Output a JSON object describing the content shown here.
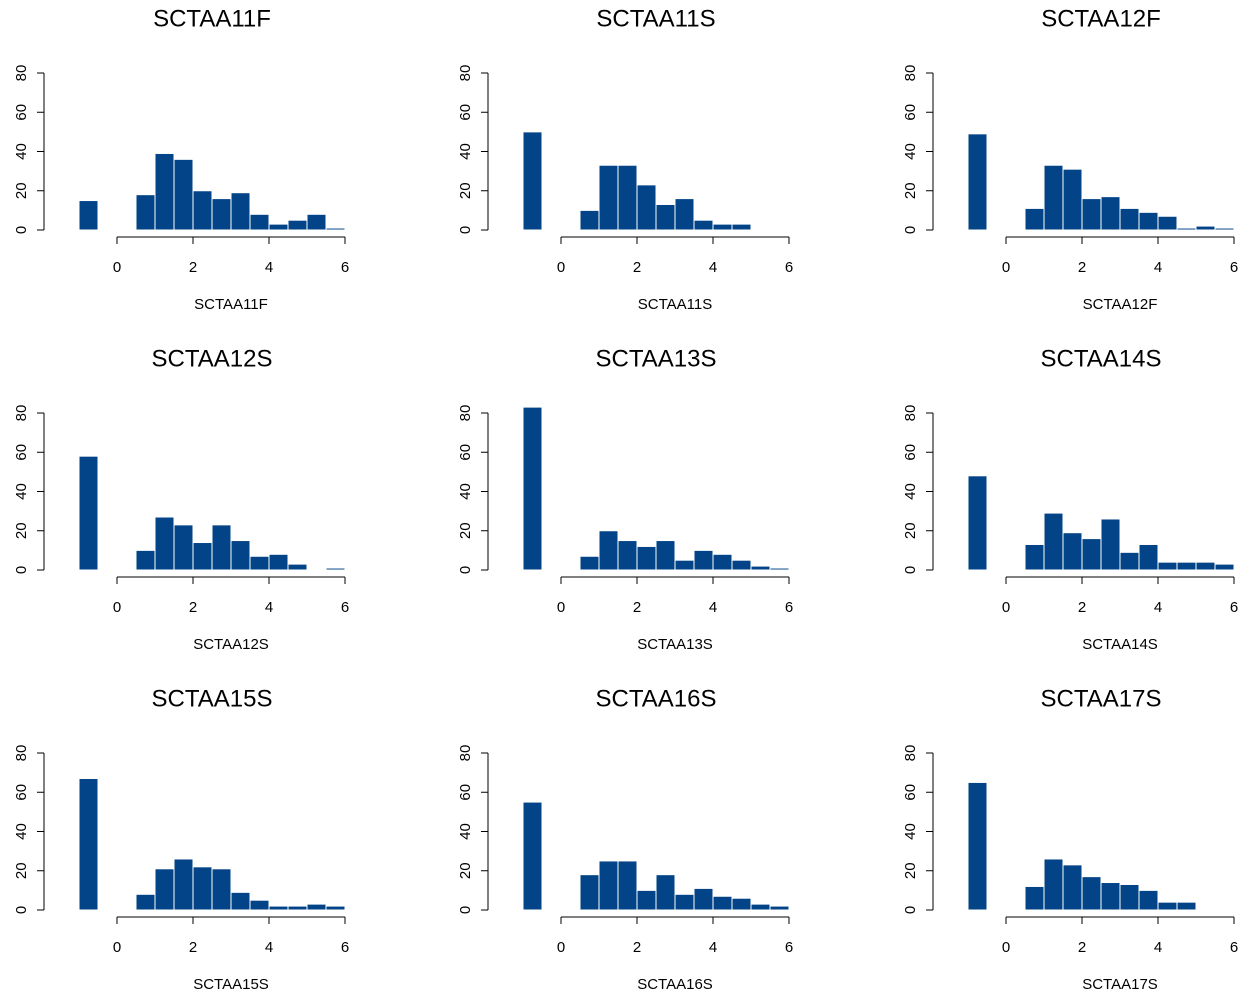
{
  "chart_data": [
    {
      "type": "histogram",
      "title": "SCTAA11F",
      "xlabel": "SCTAA11F",
      "color": "#034387",
      "bins": [
        -1,
        -0.5,
        0,
        0.5,
        1,
        1.5,
        2,
        2.5,
        3,
        3.5,
        4,
        4.5,
        5,
        5.5,
        6
      ],
      "values": [
        15,
        0,
        0,
        18,
        39,
        36,
        20,
        16,
        19,
        8,
        3,
        5,
        8,
        1
      ],
      "xlim": [
        -1.1,
        6.1
      ],
      "ylim": [
        0,
        85
      ],
      "xticks": [
        0,
        2,
        4,
        6
      ],
      "yticks": [
        0,
        20,
        40,
        60,
        80
      ]
    },
    {
      "type": "histogram",
      "title": "SCTAA11S",
      "xlabel": "SCTAA11S",
      "color": "#034387",
      "bins": [
        -1,
        -0.5,
        0,
        0.5,
        1,
        1.5,
        2,
        2.5,
        3,
        3.5,
        4,
        4.5,
        5,
        5.5,
        6
      ],
      "values": [
        50,
        0,
        0,
        10,
        33,
        33,
        23,
        13,
        16,
        5,
        3,
        3,
        0,
        0
      ],
      "xlim": [
        -1.1,
        6.1
      ],
      "ylim": [
        0,
        85
      ],
      "xticks": [
        0,
        2,
        4,
        6
      ],
      "yticks": [
        0,
        20,
        40,
        60,
        80
      ]
    },
    {
      "type": "histogram",
      "title": "SCTAA12F",
      "xlabel": "SCTAA12F",
      "color": "#034387",
      "bins": [
        -1,
        -0.5,
        0,
        0.5,
        1,
        1.5,
        2,
        2.5,
        3,
        3.5,
        4,
        4.5,
        5,
        5.5,
        6
      ],
      "values": [
        49,
        0,
        0,
        11,
        33,
        31,
        16,
        17,
        11,
        9,
        7,
        1,
        2,
        1
      ],
      "xlim": [
        -1.1,
        6.1
      ],
      "ylim": [
        0,
        85
      ],
      "xticks": [
        0,
        2,
        4,
        6
      ],
      "yticks": [
        0,
        20,
        40,
        60,
        80
      ]
    },
    {
      "type": "histogram",
      "title": "SCTAA12S",
      "xlabel": "SCTAA12S",
      "color": "#034387",
      "bins": [
        -1,
        -0.5,
        0,
        0.5,
        1,
        1.5,
        2,
        2.5,
        3,
        3.5,
        4,
        4.5,
        5,
        5.5,
        6
      ],
      "values": [
        58,
        0,
        0,
        10,
        27,
        23,
        14,
        23,
        15,
        7,
        8,
        3,
        0,
        1
      ],
      "xlim": [
        -1.1,
        6.1
      ],
      "ylim": [
        0,
        85
      ],
      "xticks": [
        0,
        2,
        4,
        6
      ],
      "yticks": [
        0,
        20,
        40,
        60,
        80
      ]
    },
    {
      "type": "histogram",
      "title": "SCTAA13S",
      "xlabel": "SCTAA13S",
      "color": "#034387",
      "bins": [
        -1,
        -0.5,
        0,
        0.5,
        1,
        1.5,
        2,
        2.5,
        3,
        3.5,
        4,
        4.5,
        5,
        5.5,
        6
      ],
      "values": [
        83,
        0,
        0,
        7,
        20,
        15,
        12,
        15,
        5,
        10,
        8,
        5,
        2,
        1
      ],
      "xlim": [
        -1.1,
        6.1
      ],
      "ylim": [
        0,
        85
      ],
      "xticks": [
        0,
        2,
        4,
        6
      ],
      "yticks": [
        0,
        20,
        40,
        60,
        80
      ]
    },
    {
      "type": "histogram",
      "title": "SCTAA14S",
      "xlabel": "SCTAA14S",
      "color": "#034387",
      "bins": [
        -1,
        -0.5,
        0,
        0.5,
        1,
        1.5,
        2,
        2.5,
        3,
        3.5,
        4,
        4.5,
        5,
        5.5,
        6
      ],
      "values": [
        48,
        0,
        0,
        13,
        29,
        19,
        16,
        26,
        9,
        13,
        4,
        4,
        4,
        3
      ],
      "xlim": [
        -1.1,
        6.1
      ],
      "ylim": [
        0,
        85
      ],
      "xticks": [
        0,
        2,
        4,
        6
      ],
      "yticks": [
        0,
        20,
        40,
        60,
        80
      ]
    },
    {
      "type": "histogram",
      "title": "SCTAA15S",
      "xlabel": "SCTAA15S",
      "color": "#034387",
      "bins": [
        -1,
        -0.5,
        0,
        0.5,
        1,
        1.5,
        2,
        2.5,
        3,
        3.5,
        4,
        4.5,
        5,
        5.5,
        6
      ],
      "values": [
        67,
        0,
        0,
        8,
        21,
        26,
        22,
        21,
        9,
        5,
        2,
        2,
        3,
        2
      ],
      "xlim": [
        -1.1,
        6.1
      ],
      "ylim": [
        0,
        85
      ],
      "xticks": [
        0,
        2,
        4,
        6
      ],
      "yticks": [
        0,
        20,
        40,
        60,
        80
      ]
    },
    {
      "type": "histogram",
      "title": "SCTAA16S",
      "xlabel": "SCTAA16S",
      "color": "#034387",
      "bins": [
        -1,
        -0.5,
        0,
        0.5,
        1,
        1.5,
        2,
        2.5,
        3,
        3.5,
        4,
        4.5,
        5,
        5.5,
        6
      ],
      "values": [
        55,
        0,
        0,
        18,
        25,
        25,
        10,
        18,
        8,
        11,
        7,
        6,
        3,
        2
      ],
      "xlim": [
        -1.1,
        6.1
      ],
      "ylim": [
        0,
        85
      ],
      "xticks": [
        0,
        2,
        4,
        6
      ],
      "yticks": [
        0,
        20,
        40,
        60,
        80
      ]
    },
    {
      "type": "histogram",
      "title": "SCTAA17S",
      "xlabel": "SCTAA17S",
      "color": "#034387",
      "bins": [
        -1,
        -0.5,
        0,
        0.5,
        1,
        1.5,
        2,
        2.5,
        3,
        3.5,
        4,
        4.5,
        5,
        5.5,
        6
      ],
      "values": [
        65,
        0,
        0,
        12,
        26,
        23,
        17,
        14,
        13,
        10,
        4,
        4,
        0,
        0
      ],
      "xlim": [
        -1.1,
        6.1
      ],
      "ylim": [
        0,
        85
      ],
      "xticks": [
        0,
        2,
        4,
        6
      ],
      "yticks": [
        0,
        20,
        40,
        60,
        80
      ]
    }
  ]
}
